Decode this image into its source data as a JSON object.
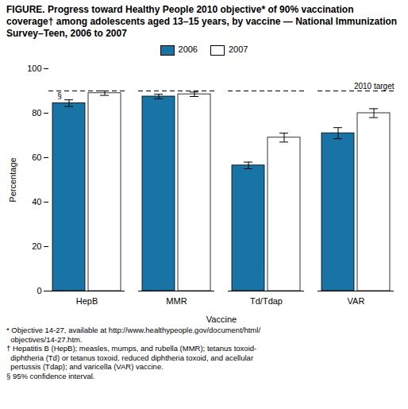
{
  "chart_data": {
    "type": "bar",
    "title": "FIGURE. Progress toward Healthy People 2010 objective* of 90% vaccination coverage† among adolescents aged 13–15 years, by vaccine — National Immunization Survey–Teen, 2006 to 2007",
    "categories": [
      "HepB",
      "MMR",
      "Td/Tdap",
      "VAR"
    ],
    "series": [
      {
        "name": "2006",
        "color": "#1874a4",
        "values": [
          84.5,
          87.5,
          56.5,
          71.0
        ],
        "errors": [
          1.5,
          1.0,
          1.5,
          2.5
        ]
      },
      {
        "name": "2007",
        "color": "#ffffff",
        "values": [
          89.0,
          88.5,
          69.0,
          80.0
        ],
        "errors": [
          1.0,
          1.0,
          2.0,
          2.0
        ]
      }
    ],
    "xlabel": "Vaccine",
    "ylabel": "Percentage",
    "ylim": [
      0,
      100
    ],
    "yticks": [
      0,
      20,
      40,
      60,
      80,
      100
    ],
    "target_line": 90,
    "target_label": "2010 target",
    "annotations": [
      {
        "text": "§",
        "category": "HepB",
        "series": "2006"
      }
    ],
    "footnotes": [
      "* Objective 14-27, available at http://www.healthypeople.gov/document/html/",
      "  objectives/14-27.htm.",
      "† Hepatitis B (HepB); measles, mumps, and rubella (MMR); tetanus toxoid-",
      "  diphtheria (Td) or tetanus toxoid, reduced diphtheria toxoid, and acellular",
      "  pertussis (Tdap); and varicella (VAR) vaccine.",
      "§ 95% confidence interval."
    ],
    "legend": "top",
    "grid": false
  }
}
